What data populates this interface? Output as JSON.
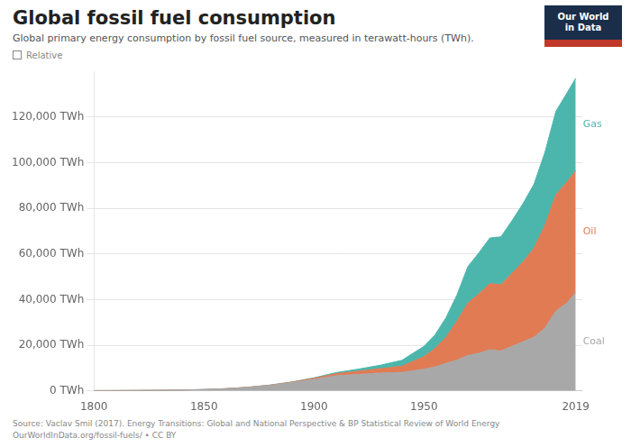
{
  "chart_data": {
    "type": "area",
    "title": "Global fossil fuel consumption",
    "subtitle": "Global primary energy consumption by fossil fuel source, measured in terawatt-hours (TWh).",
    "annotations": [
      "Relative",
      "Our World",
      "in Data"
    ],
    "source": "Source: Vaclav Smil (2017). Energy Transitions: Global and National Perspective & BP Statistical Review of World Energy\nOurWorldInData.org/fossil-fuels/ • CC BY",
    "stacked": true,
    "grid": true,
    "x": [
      1800,
      1810,
      1820,
      1830,
      1840,
      1850,
      1860,
      1870,
      1880,
      1890,
      1900,
      1910,
      1920,
      1930,
      1940,
      1950,
      1955,
      1960,
      1965,
      1970,
      1975,
      1980,
      1985,
      1990,
      1995,
      2000,
      2005,
      2010,
      2015,
      2019
    ],
    "series": [
      {
        "name": "Coal",
        "color": "#a8a8a8",
        "values": [
          100,
          130,
          170,
          230,
          370,
          560,
          920,
          1500,
          2400,
          3600,
          5000,
          6600,
          7200,
          7800,
          8100,
          9500,
          10500,
          12000,
          13500,
          15500,
          16500,
          18000,
          17500,
          19500,
          21500,
          23500,
          27500,
          35000,
          38500,
          43000
        ]
      },
      {
        "name": "Oil",
        "color": "#e07b54",
        "values": [
          0,
          0,
          0,
          0,
          0,
          10,
          30,
          60,
          100,
          200,
          500,
          900,
          1400,
          1900,
          2700,
          5500,
          8000,
          11500,
          17000,
          23000,
          26000,
          29000,
          29000,
          32000,
          35000,
          39000,
          45000,
          51000,
          53000,
          53500
        ]
      },
      {
        "name": "Gas",
        "color": "#4db6ac",
        "values": [
          0,
          0,
          0,
          0,
          0,
          0,
          10,
          20,
          50,
          100,
          200,
          500,
          900,
          1500,
          2600,
          4500,
          6000,
          8500,
          11500,
          16000,
          18000,
          20000,
          21000,
          23000,
          25500,
          28000,
          32000,
          36500,
          39000,
          40500
        ]
      }
    ],
    "xlim": [
      1800,
      2022
    ],
    "xticks": [
      1800,
      1850,
      1900,
      1950,
      2019
    ],
    "ylim": [
      0,
      140000
    ],
    "yticks": [
      {
        "value": 0,
        "label": "0 TWh"
      },
      {
        "value": 20000,
        "label": "20,000 TWh"
      },
      {
        "value": 40000,
        "label": "40,000 TWh"
      },
      {
        "value": 60000,
        "label": "60,000 TWh"
      },
      {
        "value": 80000,
        "label": "80,000 TWh"
      },
      {
        "value": 100000,
        "label": "100,000 TWh"
      },
      {
        "value": 120000,
        "label": "120,000 TWh"
      }
    ]
  }
}
